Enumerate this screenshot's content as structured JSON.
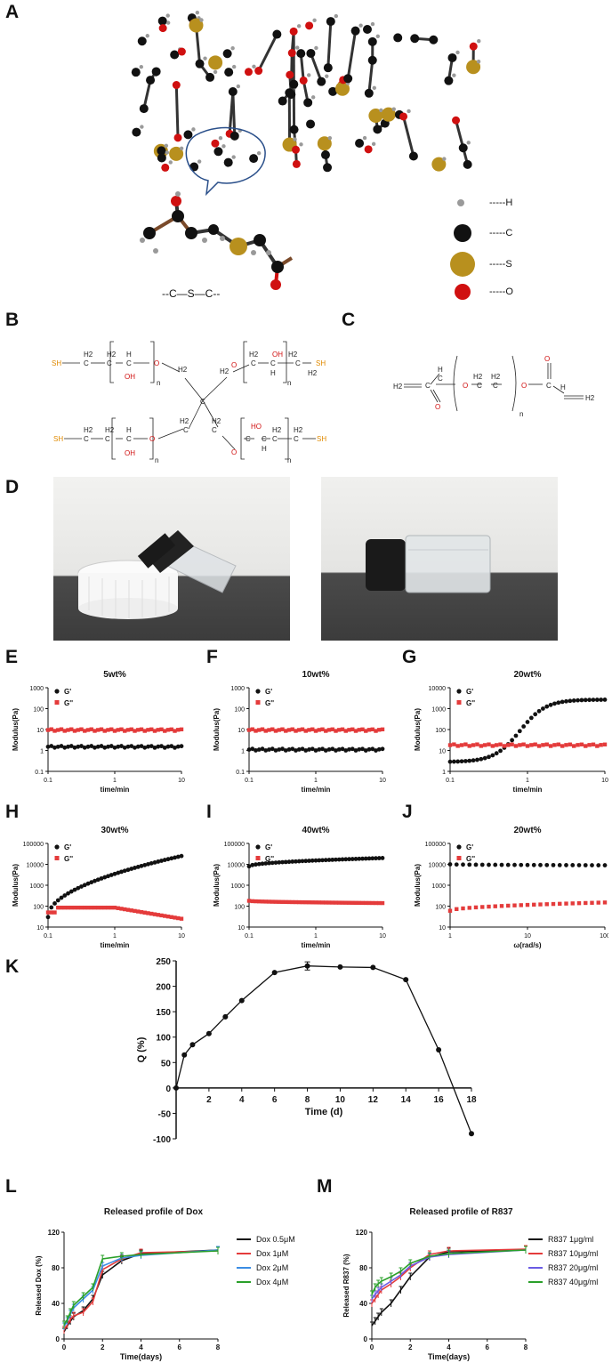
{
  "letters": [
    "A",
    "B",
    "C",
    "D",
    "E",
    "F",
    "G",
    "H",
    "I",
    "J",
    "K",
    "L",
    "M"
  ],
  "panelA": {
    "legend": [
      {
        "label": "-----H",
        "color": "#9a9a9a"
      },
      {
        "label": "-----C",
        "color": "#111111"
      },
      {
        "label": "-----S",
        "color": "#b8901e"
      },
      {
        "label": "-----O",
        "color": "#d01010"
      }
    ],
    "bond_label": "--C—S—C--"
  },
  "panelB": {
    "sh": "SH",
    "h2": "H2",
    "h": "H",
    "oh": "OH",
    "ho": "HO",
    "o": "O",
    "c": "C",
    "n": "n"
  },
  "panelC": {
    "h": "H",
    "h2": "H2",
    "o": "O",
    "c": "C",
    "n": "n"
  },
  "colors": {
    "gprime": "#111111",
    "gdouble": "#e43b3b",
    "s_atom": "#b8901e",
    "o_atom": "#d01010",
    "thiol": "#e08a00"
  },
  "rheo": [
    {
      "id": "E",
      "title": "5wt%",
      "xlabel": "time/min",
      "ylabel": "Modulus(Pa)",
      "log_x": true,
      "xlim": [
        0.1,
        10
      ],
      "xticks": [
        "0.1",
        "1",
        "10"
      ],
      "ylim": [
        0.1,
        1000
      ],
      "yticks": [
        "1000",
        "100",
        "10",
        "1",
        "0.1"
      ],
      "legend": [
        "G'",
        "G''"
      ],
      "chart_data": {
        "type": "scatter",
        "series": [
          {
            "name": "G'",
            "approx_level": 1.5
          },
          {
            "name": "G''",
            "approx_level": 9.5
          }
        ]
      }
    },
    {
      "id": "F",
      "title": "10wt%",
      "xlabel": "time/min",
      "ylabel": "Modulus(Pa)",
      "log_x": true,
      "xlim": [
        0.1,
        10
      ],
      "xticks": [
        "0.1",
        "1",
        "10"
      ],
      "ylim": [
        0.1,
        1000
      ],
      "yticks": [
        "1000",
        "100",
        "10",
        "1",
        "0.1"
      ],
      "legend": [
        "G'",
        "G''"
      ],
      "chart_data": {
        "type": "scatter",
        "series": [
          {
            "name": "G'",
            "approx_level": 1.1
          },
          {
            "name": "G''",
            "approx_level": 9.5
          }
        ]
      }
    },
    {
      "id": "G",
      "title": "20wt%",
      "xlabel": "time/min",
      "ylabel": "Modulus(Pa)",
      "log_x": true,
      "xlim": [
        0.1,
        10
      ],
      "xticks": [
        "0.1",
        "1",
        "10"
      ],
      "ylim": [
        1,
        10000
      ],
      "yticks": [
        "10000",
        "1000",
        "100",
        "10",
        "1"
      ],
      "legend": [
        "G'",
        "G''"
      ],
      "chart_data": {
        "type": "scatter",
        "series": [
          {
            "name": "G'",
            "shape": "sigmoid",
            "start": 2.8,
            "end": 2700,
            "crossover": 0.8
          },
          {
            "name": "G''",
            "approx_level": 18,
            "peak": 40,
            "end": 28
          }
        ]
      }
    },
    {
      "id": "H",
      "title": "30wt%",
      "xlabel": "time/min",
      "ylabel": "Modulus(Pa)",
      "log_x": true,
      "xlim": [
        0.1,
        10
      ],
      "xticks": [
        "0.1",
        "1",
        "10"
      ],
      "ylim": [
        10,
        100000
      ],
      "yticks": [
        "100000",
        "10000",
        "1000",
        "100",
        "10"
      ],
      "legend": [
        "G'",
        "G''"
      ],
      "chart_data": {
        "type": "scatter",
        "series": [
          {
            "name": "G'",
            "start": 30,
            "end": 25000
          },
          {
            "name": "G''",
            "start": 25,
            "plateau": 85,
            "end": 25
          }
        ]
      }
    },
    {
      "id": "I",
      "title": "40wt%",
      "xlabel": "time/min",
      "ylabel": "Modulus(Pa)",
      "log_x": true,
      "xlim": [
        0.1,
        10
      ],
      "xticks": [
        "0.1",
        "1",
        "10"
      ],
      "ylim": [
        10,
        100000
      ],
      "yticks": [
        "100000",
        "10000",
        "1000",
        "100",
        "10"
      ],
      "legend": [
        "G'",
        "G''"
      ],
      "chart_data": {
        "type": "scatter",
        "series": [
          {
            "name": "G'",
            "start": 8000,
            "end": 20000
          },
          {
            "name": "G''",
            "start": 180,
            "end": 140
          }
        ]
      }
    },
    {
      "id": "J",
      "title": "20wt%",
      "xlabel": "ω(rad/s)",
      "ylabel": "Modulus(Pa)",
      "log_x": true,
      "xlim": [
        1,
        100
      ],
      "xticks": [
        "1",
        "10",
        "100"
      ],
      "ylim": [
        10,
        100000
      ],
      "yticks": [
        "100000",
        "10000",
        "1000",
        "100",
        "10"
      ],
      "legend": [
        "G'",
        "G''"
      ],
      "chart_data": {
        "type": "scatter",
        "series": [
          {
            "name": "G'",
            "start": 10000,
            "end": 9000
          },
          {
            "name": "G''",
            "start": 60,
            "end": 150
          }
        ]
      }
    }
  ],
  "panelK": {
    "xlabel": "Time (d)",
    "ylabel": "Q (%)",
    "xticks": [
      "2",
      "4",
      "6",
      "8",
      "10",
      "12",
      "14",
      "16",
      "18"
    ],
    "yticks": [
      "250",
      "200",
      "150",
      "100",
      "50",
      "0",
      "-50",
      "-100"
    ],
    "chart_data": {
      "type": "line",
      "x": [
        0,
        0.5,
        1,
        2,
        3,
        4,
        6,
        8,
        10,
        12,
        14,
        16,
        18
      ],
      "y": [
        0,
        65,
        85,
        107,
        140,
        172,
        227,
        240,
        238,
        237,
        213,
        75,
        -90
      ],
      "xlim": [
        0,
        18
      ],
      "ylim": [
        -100,
        250
      ]
    }
  },
  "panelL": {
    "title": "Released profile of Dox",
    "xlabel": "Time(days)",
    "ylabel": "Released Dox (%)",
    "xticks": [
      "0",
      "2",
      "4",
      "6",
      "8"
    ],
    "yticks": [
      "120",
      "80",
      "40",
      "0"
    ],
    "chart_data": {
      "type": "line",
      "x": [
        0,
        0.17,
        0.33,
        0.5,
        1,
        1.5,
        2,
        3,
        4,
        8
      ],
      "xlim": [
        0,
        8
      ],
      "ylim": [
        0,
        120
      ],
      "series": [
        {
          "name": "Dox 0.5μM",
          "color": "#111111",
          "values": [
            8,
            15,
            20,
            25,
            32,
            45,
            72,
            88,
            96,
            100
          ]
        },
        {
          "name": "Dox 1μM",
          "color": "#e43b3b",
          "values": [
            10,
            16,
            22,
            26,
            30,
            42,
            78,
            90,
            97,
            99
          ]
        },
        {
          "name": "Dox 2μM",
          "color": "#3b8de4",
          "values": [
            14,
            20,
            28,
            35,
            45,
            55,
            82,
            91,
            94,
            100
          ]
        },
        {
          "name": "Dox 4μM",
          "color": "#2aa02a",
          "values": [
            16,
            22,
            30,
            38,
            48,
            58,
            90,
            93,
            95,
            99
          ]
        }
      ]
    }
  },
  "panelM": {
    "title": "Released profile of R837",
    "xlabel": "Time(days)",
    "ylabel": "Released R837 (%)",
    "xticks": [
      "0",
      "2",
      "4",
      "6",
      "8"
    ],
    "yticks": [
      "120",
      "80",
      "40",
      "0"
    ],
    "chart_data": {
      "type": "line",
      "x": [
        0,
        0.17,
        0.33,
        0.5,
        1,
        1.5,
        2,
        3,
        4,
        8
      ],
      "xlim": [
        0,
        8
      ],
      "ylim": [
        0,
        120
      ],
      "series": [
        {
          "name": "R837 1μg/ml",
          "color": "#111111",
          "values": [
            15,
            20,
            25,
            30,
            40,
            55,
            70,
            92,
            98,
            100
          ]
        },
        {
          "name": "R837 10μg/ml",
          "color": "#e43b3b",
          "values": [
            40,
            45,
            50,
            55,
            62,
            70,
            80,
            95,
            99,
            101
          ]
        },
        {
          "name": "R837 20μg/ml",
          "color": "#6a5be4",
          "values": [
            45,
            50,
            54,
            58,
            65,
            72,
            82,
            92,
            95,
            100
          ]
        },
        {
          "name": "R837 40μg/ml",
          "color": "#2aa02a",
          "values": [
            50,
            58,
            62,
            65,
            70,
            76,
            85,
            93,
            96,
            100
          ]
        }
      ]
    }
  }
}
